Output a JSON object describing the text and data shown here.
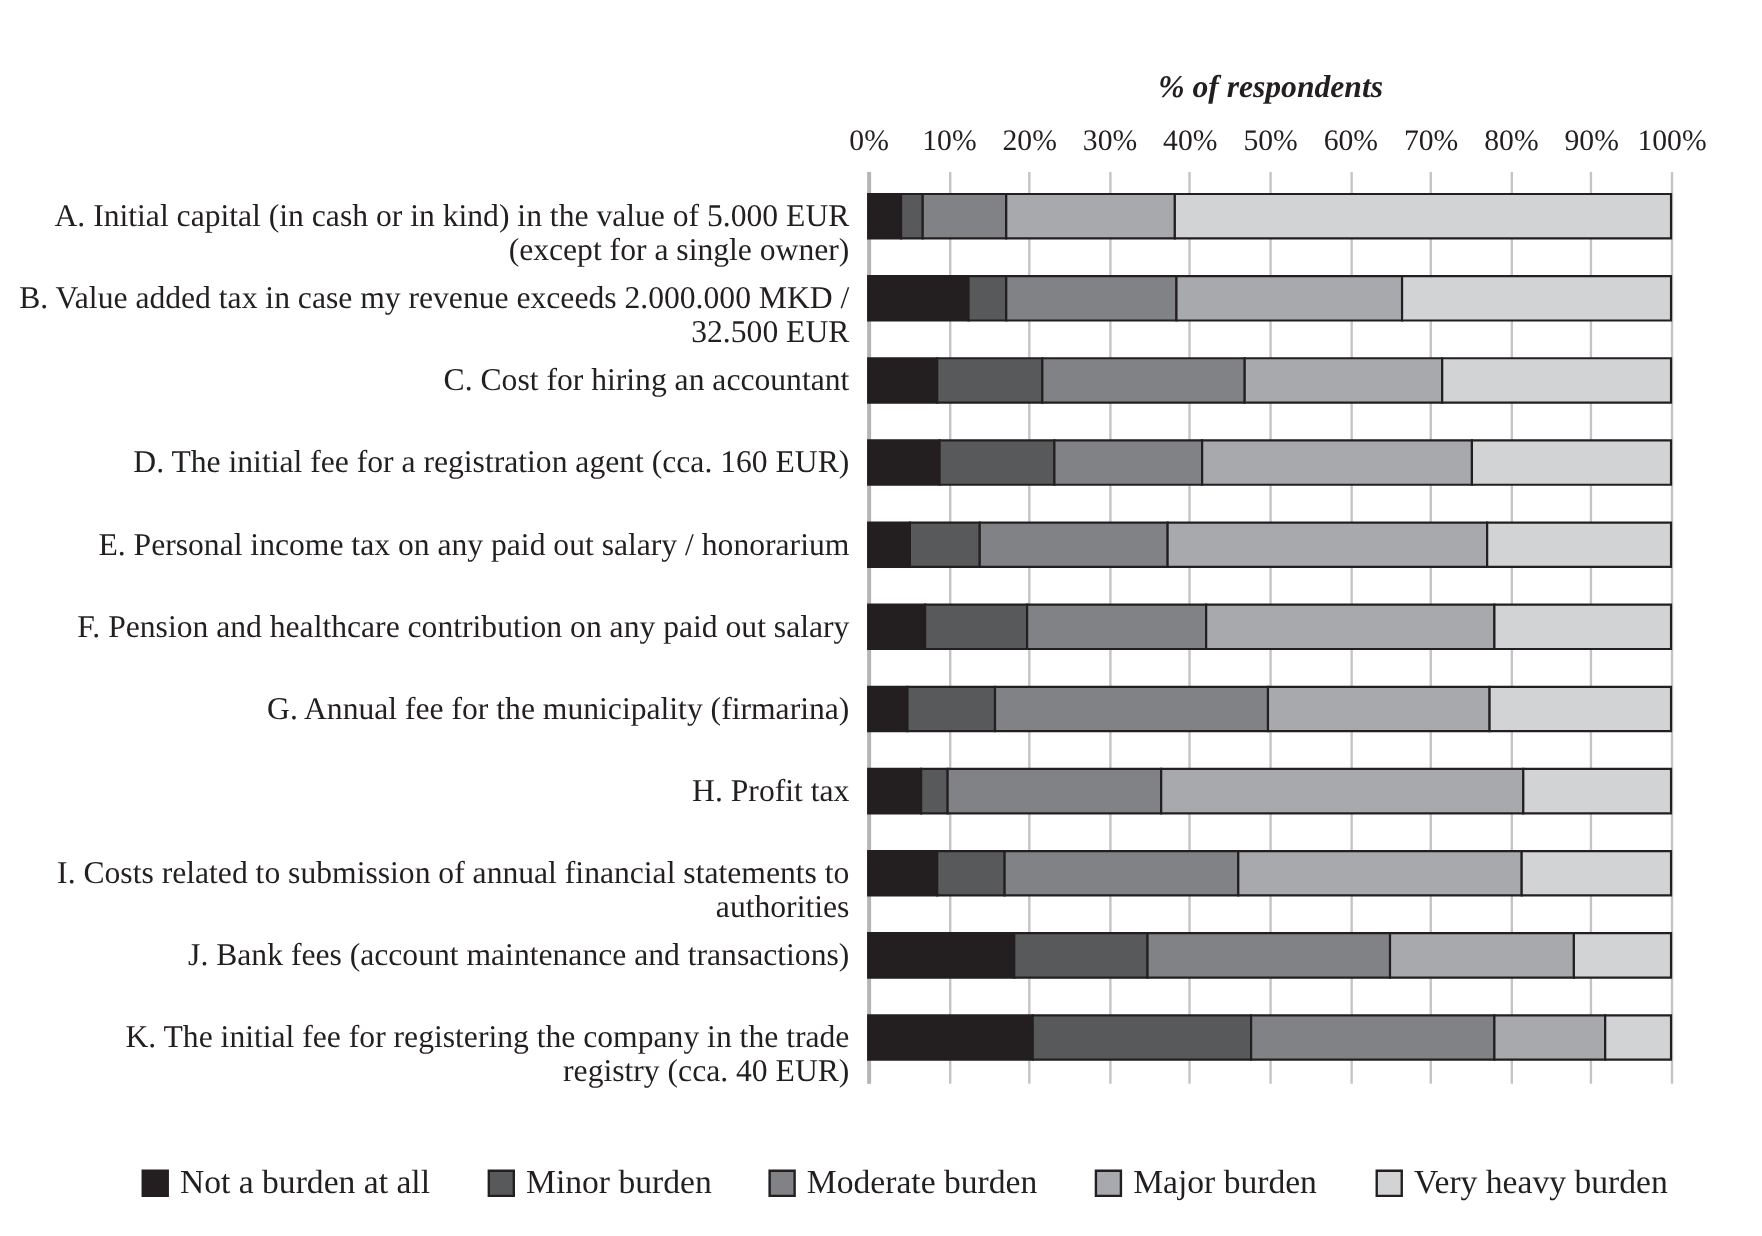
{
  "chart_data": {
    "type": "bar",
    "orientation": "horizontal",
    "stacked": true,
    "xlabel": "% of respondents",
    "categories": [
      "A. Initial capital (in cash or in kind) in the value of 5.000 EUR (except for a single owner)",
      "B. Value added tax in case my revenue exceeds 2.000.000 MKD / 32.500 EUR",
      "C. Cost for hiring an accountant",
      "D. The initial fee for a registration agent (cca. 160 EUR)",
      "E. Personal income tax on any paid out salary / honorarium",
      "F. Pension and healthcare contribution on any paid out salary",
      "G. Annual fee for the municipality (firmarina)",
      "H. Profit tax",
      "I. Costs related to submission of annual financial statements to authorities",
      "J. Bank fees (account maintenance and transactions)",
      "K. The initial fee for registering the company in the trade registry (cca. 40 EUR)"
    ],
    "series": [
      {
        "name": "Not a burden at all",
        "color": "#231f20",
        "values": [
          4.1,
          12.5,
          8.6,
          8.9,
          5.2,
          7.1,
          4.9,
          6.6,
          8.6,
          18.2,
          20.5
        ]
      },
      {
        "name": "Minor burden",
        "color": "#58595b",
        "values": [
          2.7,
          4.7,
          13.1,
          14.3,
          8.7,
          12.7,
          10.9,
          3.3,
          8.4,
          16.6,
          27.2
        ]
      },
      {
        "name": "Moderate burden",
        "color": "#808285",
        "values": [
          10.4,
          21.2,
          25.2,
          18.4,
          23.4,
          22.3,
          34.0,
          26.6,
          29.1,
          30.2,
          30.3
        ]
      },
      {
        "name": "Major burden",
        "color": "#a7a9ac",
        "values": [
          21.0,
          28.1,
          24.6,
          33.6,
          39.8,
          35.9,
          27.6,
          45.1,
          35.3,
          22.9,
          13.8
        ]
      },
      {
        "name": "Very heavy burden",
        "color": "#d1d3d4",
        "values": [
          61.8,
          33.5,
          28.5,
          24.8,
          22.9,
          22.0,
          22.6,
          18.4,
          18.6,
          12.1,
          8.2
        ]
      }
    ],
    "xlim": [
      0,
      100
    ],
    "xticks": [
      {
        "value": 0,
        "label": "0%"
      },
      {
        "value": 10,
        "label": "10%"
      },
      {
        "value": 20,
        "label": "20%"
      },
      {
        "value": 30,
        "label": "30%"
      },
      {
        "value": 40,
        "label": "40%"
      },
      {
        "value": 50,
        "label": "50%"
      },
      {
        "value": 60,
        "label": "60%"
      },
      {
        "value": 70,
        "label": "70%"
      },
      {
        "value": 80,
        "label": "80%"
      },
      {
        "value": 90,
        "label": "90%"
      },
      {
        "value": 100,
        "label": "100%"
      }
    ],
    "grid": "x",
    "legend": "bottom"
  }
}
